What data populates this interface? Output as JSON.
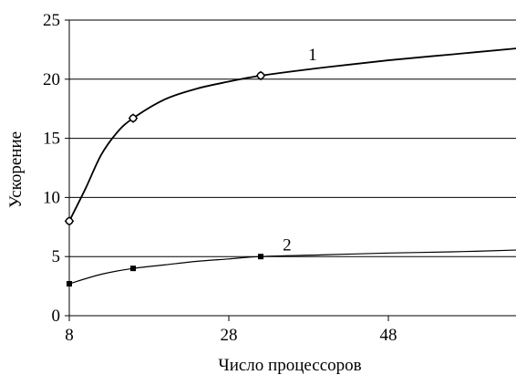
{
  "chart_data": {
    "type": "line",
    "title": "",
    "xlabel": "Число процессоров",
    "ylabel": "Ускорение",
    "xlim": [
      8,
      64
    ],
    "ylim": [
      0,
      25
    ],
    "x_ticks": [
      "8",
      "28",
      "48"
    ],
    "y_ticks": [
      "0",
      "5",
      "10",
      "15",
      "20",
      "25"
    ],
    "grid": "horizontal",
    "series": [
      {
        "name": "1",
        "marker": "diamond-circle",
        "color": "#000000",
        "points": [
          {
            "x": 8,
            "y": 8.0
          },
          {
            "x": 16,
            "y": 16.7
          },
          {
            "x": 32,
            "y": 20.3
          }
        ],
        "curve": [
          {
            "x": 8,
            "y": 8.0
          },
          {
            "x": 10,
            "y": 10.7
          },
          {
            "x": 12,
            "y": 13.6
          },
          {
            "x": 14,
            "y": 15.5
          },
          {
            "x": 16,
            "y": 16.7
          },
          {
            "x": 20,
            "y": 18.3
          },
          {
            "x": 24,
            "y": 19.2
          },
          {
            "x": 28,
            "y": 19.8
          },
          {
            "x": 32,
            "y": 20.3
          },
          {
            "x": 40,
            "y": 21.0
          },
          {
            "x": 48,
            "y": 21.6
          },
          {
            "x": 56,
            "y": 22.1
          },
          {
            "x": 64,
            "y": 22.6
          }
        ]
      },
      {
        "name": "2",
        "marker": "square",
        "color": "#000000",
        "points": [
          {
            "x": 8,
            "y": 2.7
          },
          {
            "x": 16,
            "y": 4.0
          },
          {
            "x": 32,
            "y": 5.0
          }
        ],
        "curve": [
          {
            "x": 8,
            "y": 2.7
          },
          {
            "x": 12,
            "y": 3.5
          },
          {
            "x": 16,
            "y": 4.0
          },
          {
            "x": 20,
            "y": 4.3
          },
          {
            "x": 24,
            "y": 4.6
          },
          {
            "x": 28,
            "y": 4.8
          },
          {
            "x": 32,
            "y": 5.0
          },
          {
            "x": 40,
            "y": 5.15
          },
          {
            "x": 48,
            "y": 5.3
          },
          {
            "x": 56,
            "y": 5.4
          },
          {
            "x": 64,
            "y": 5.55
          }
        ]
      }
    ]
  }
}
